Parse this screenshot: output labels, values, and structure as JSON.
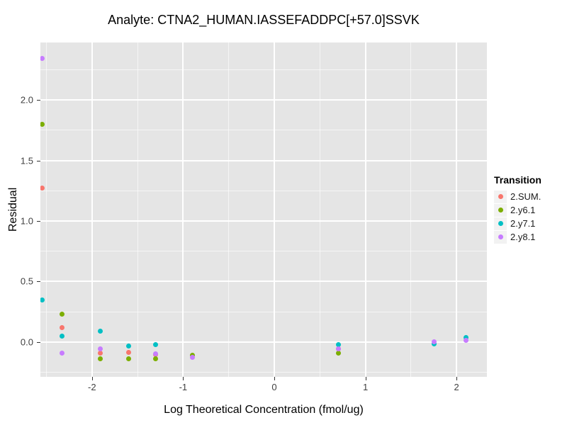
{
  "chart_data": {
    "type": "scatter",
    "title": "Analyte: CTNA2_HUMAN.IASSEFADDPC[+57.0]SSVK",
    "xlabel": "Log Theoretical Concentration (fmol/ug)",
    "ylabel": "Residual",
    "xlim": [
      -2.566,
      2.333
    ],
    "ylim": [
      -0.287,
      2.474
    ],
    "x_ticks": [
      -2,
      -1,
      0,
      1,
      2
    ],
    "x_tick_labels": [
      "-2",
      "-1",
      "0",
      "1",
      "2"
    ],
    "y_ticks": [
      0,
      0.5,
      1,
      1.5,
      2
    ],
    "y_tick_labels": [
      "0.0",
      "0.5",
      "1.0",
      "1.5",
      "2.0"
    ],
    "x_minor_ticks": [
      -2.5,
      -1.5,
      -0.5,
      0.5,
      1.5
    ],
    "y_minor_ticks": [
      -0.25,
      0.25,
      0.75,
      1.25,
      1.75,
      2.25
    ],
    "grid": true,
    "legend_position": "right",
    "legend_title": "Transition",
    "colors": {
      "panel_background": "#E5E5E5",
      "gridline": "#FFFFFF",
      "legend_key_background": "#F2F2F2",
      "tick_text": "#404040"
    },
    "series": [
      {
        "name": "2.SUM.",
        "color": "#F8766D",
        "points": [
          [
            -2.55,
            1.27
          ],
          [
            -2.33,
            0.12
          ],
          [
            -1.91,
            -0.09
          ],
          [
            -1.6,
            -0.088
          ],
          [
            -1.3,
            -0.1
          ],
          [
            0.7,
            -0.055
          ]
        ]
      },
      {
        "name": "2.y6.1",
        "color": "#7CAE00",
        "points": [
          [
            -2.55,
            1.8
          ],
          [
            -2.33,
            0.23
          ],
          [
            -1.91,
            -0.14
          ],
          [
            -1.6,
            -0.14
          ],
          [
            -1.3,
            -0.135
          ],
          [
            -0.9,
            -0.11
          ],
          [
            0.7,
            -0.09
          ]
        ]
      },
      {
        "name": "2.y7.1",
        "color": "#00BFC4",
        "points": [
          [
            -2.55,
            0.35
          ],
          [
            -2.33,
            0.05
          ],
          [
            -1.91,
            0.088
          ],
          [
            -1.6,
            -0.035
          ],
          [
            -1.3,
            -0.018
          ],
          [
            0.7,
            -0.022
          ],
          [
            1.75,
            -0.015
          ],
          [
            2.1,
            0.038
          ]
        ]
      },
      {
        "name": "2.y8.1",
        "color": "#C77CFF",
        "points": [
          [
            -2.55,
            2.34
          ],
          [
            -2.33,
            -0.09
          ],
          [
            -1.91,
            -0.058
          ],
          [
            -1.3,
            -0.099
          ],
          [
            -0.9,
            -0.128
          ],
          [
            0.7,
            -0.057
          ],
          [
            1.75,
            0.005
          ],
          [
            2.1,
            0.015
          ]
        ]
      }
    ]
  }
}
